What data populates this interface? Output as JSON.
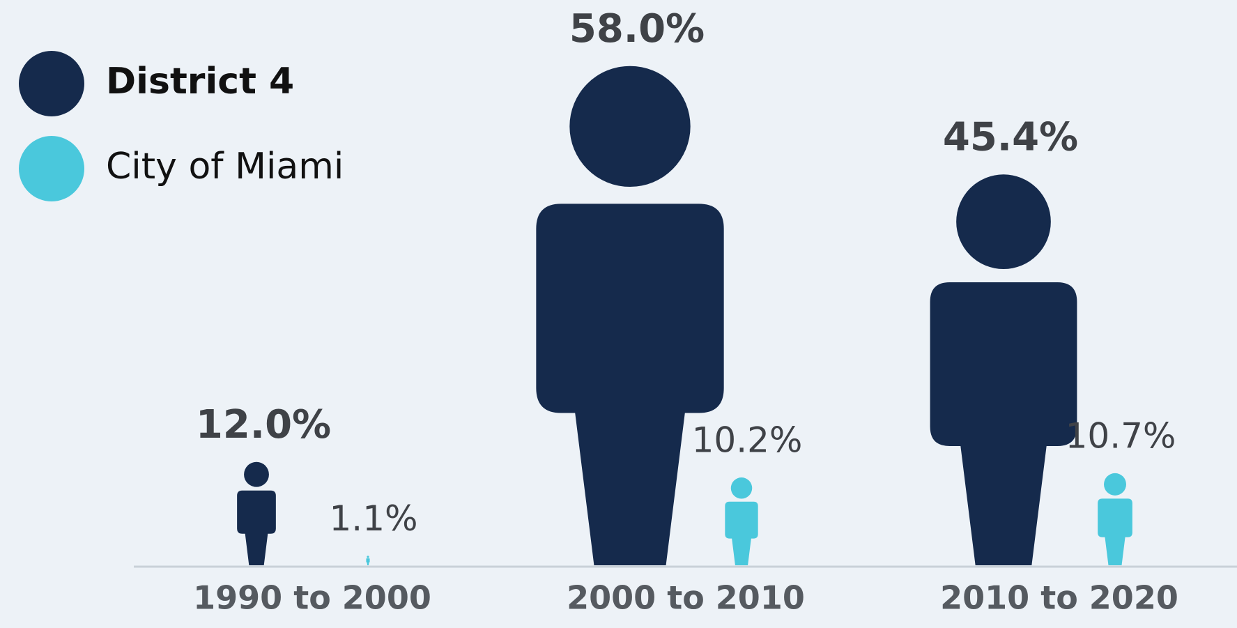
{
  "chart_data": {
    "type": "pictograph",
    "categories": [
      "1990 to 2000",
      "2000 to 2010",
      "2010 to 2020"
    ],
    "series": [
      {
        "name": "District 4",
        "color": "#152a4c",
        "values": [
          12.0,
          58.0,
          45.4
        ],
        "value_labels": [
          "12.0%",
          "58.0%",
          "45.4%"
        ]
      },
      {
        "name": "City of Miami",
        "color": "#4ac8dc",
        "values": [
          1.1,
          10.2,
          10.7
        ],
        "value_labels": [
          "1.1%",
          "10.2%",
          "10.7%"
        ]
      }
    ],
    "legend": "top-left"
  }
}
